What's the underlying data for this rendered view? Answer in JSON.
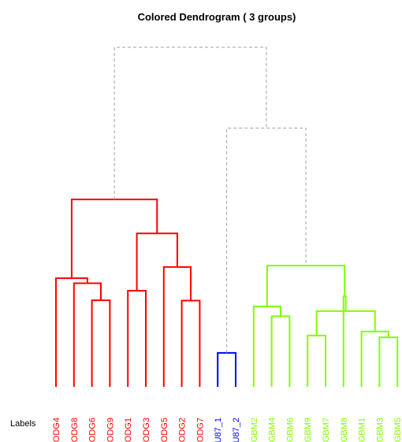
{
  "chart_data": {
    "type": "dendrogram",
    "title": "Colored Dendrogram ( 3  groups)",
    "xlabel": "Labels",
    "ylabel": "",
    "k_groups": 3,
    "leaves": [
      {
        "label": "ODG4",
        "group": 1
      },
      {
        "label": "ODG8",
        "group": 1
      },
      {
        "label": "ODG6",
        "group": 1
      },
      {
        "label": "ODG9",
        "group": 1
      },
      {
        "label": "ODG1",
        "group": 1
      },
      {
        "label": "ODG3",
        "group": 1
      },
      {
        "label": "ODG5",
        "group": 1
      },
      {
        "label": "ODG2",
        "group": 1
      },
      {
        "label": "ODG7",
        "group": 1
      },
      {
        "label": "U87_1",
        "group": 2
      },
      {
        "label": "U87_2",
        "group": 2
      },
      {
        "label": "GBM2",
        "group": 3
      },
      {
        "label": "GBM4",
        "group": 3
      },
      {
        "label": "GBM6",
        "group": 3
      },
      {
        "label": "GBM9",
        "group": 3
      },
      {
        "label": "GBM7",
        "group": 3
      },
      {
        "label": "GBM8",
        "group": 3
      },
      {
        "label": "GBM1",
        "group": 3
      },
      {
        "label": "GBM3",
        "group": 3
      },
      {
        "label": "GBM5",
        "group": 3
      }
    ],
    "merges": [
      {
        "id": "m1",
        "left": "ODG6",
        "right": "ODG9",
        "height": 0.255
      },
      {
        "id": "m2",
        "left": "ODG8",
        "right": "m1",
        "height": 0.305
      },
      {
        "id": "m3",
        "left": "ODG4",
        "right": "m2",
        "height": 0.32
      },
      {
        "id": "m4",
        "left": "ODG1",
        "right": "ODG3",
        "height": 0.283
      },
      {
        "id": "m5",
        "left": "ODG2",
        "right": "ODG7",
        "height": 0.254
      },
      {
        "id": "m6",
        "left": "ODG5",
        "right": "m5",
        "height": 0.353
      },
      {
        "id": "m7",
        "left": "m4",
        "right": "m6",
        "height": 0.452
      },
      {
        "id": "m8",
        "left": "m3",
        "right": "m7",
        "height": 0.552
      },
      {
        "id": "m9",
        "left": "U87_1",
        "right": "U87_2",
        "height": 0.1
      },
      {
        "id": "m10",
        "left": "GBM4",
        "right": "GBM6",
        "height": 0.208
      },
      {
        "id": "m11",
        "left": "GBM2",
        "right": "m10",
        "height": 0.237
      },
      {
        "id": "m12",
        "left": "GBM9",
        "right": "GBM7",
        "height": 0.151
      },
      {
        "id": "m13",
        "left": "GBM3",
        "right": "GBM5",
        "height": 0.146
      },
      {
        "id": "m14",
        "left": "GBM1",
        "right": "m13",
        "height": 0.163
      },
      {
        "id": "m15",
        "left": "m12",
        "right": "m14",
        "height": 0.223
      },
      {
        "id": "m16",
        "left": "GBM8",
        "right": "m15",
        "height": 0.267
      },
      {
        "id": "m17",
        "left": "m11",
        "right": "m16",
        "height": 0.357
      },
      {
        "id": "m18",
        "left": "m9",
        "right": "m17",
        "height": 0.762
      },
      {
        "id": "m19",
        "left": "m8",
        "right": "m18",
        "height": 1.0
      }
    ],
    "colors": {
      "group1": "#ff0000",
      "group2": "#0000ff",
      "group3": "#80ff00",
      "upper_tree": "#a0a0a0",
      "text": "#000000"
    }
  }
}
